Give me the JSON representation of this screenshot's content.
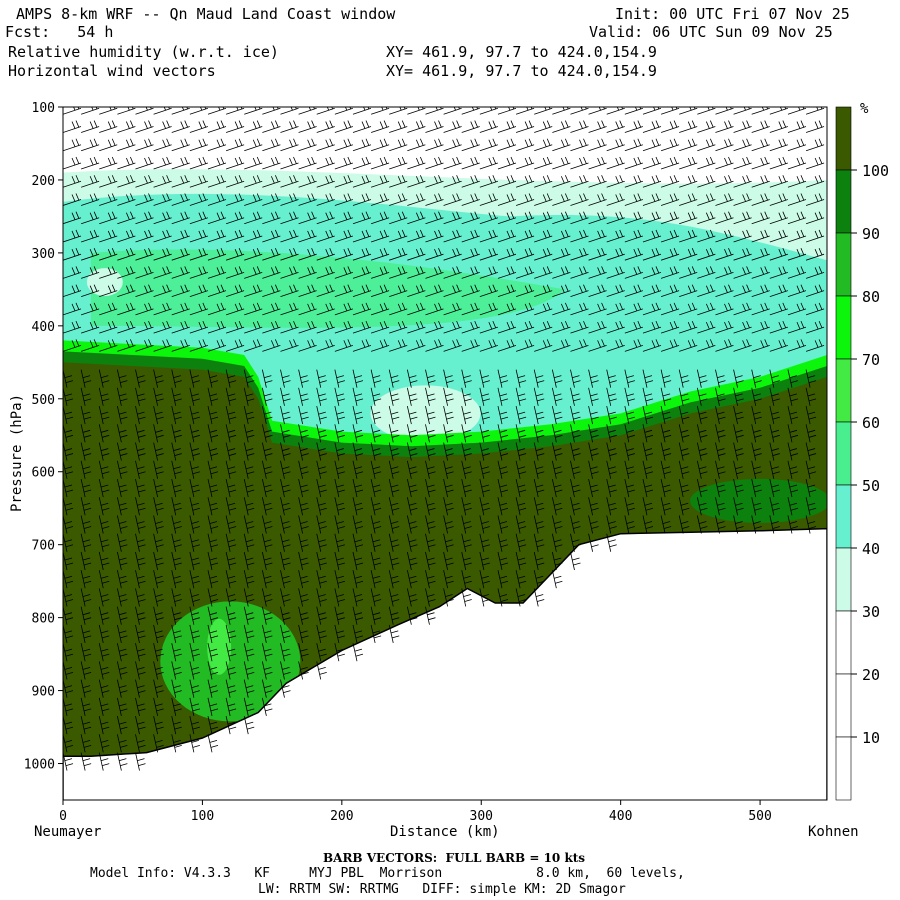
{
  "header": {
    "title": "AMPS 8-km WRF -- Qn Maud Land Coast window",
    "fcst": "Fcst:   54 h",
    "field1": "Relative humidity (w.r.t. ice)",
    "field2": "Horizontal wind vectors",
    "xy1": "XY= 461.9, 97.7 to 424.0,154.9",
    "xy2": "XY= 461.9, 97.7 to 424.0,154.9",
    "init": "Init: 00 UTC Fri 07 Nov 25",
    "valid": "Valid: 06 UTC Sun 09 Nov 25"
  },
  "axes": {
    "ylabel": "Pressure (hPa)",
    "xlabel": "Distance (km)",
    "left_endpoint": "Neumayer",
    "right_endpoint": "Kohnen",
    "colorbar_unit": "%"
  },
  "footer": {
    "barb_note": "BARB VECTORS:  FULL BARB = 10 kts",
    "model_line1": "Model Info: V4.3.3   KF     MYJ PBL  Morrison            8.0 km,  60 levels,",
    "model_line2": "LW: RRTM SW: RRTMG   DIFF: simple KM: 2D Smagor"
  },
  "colors": {
    "c10_20": "#ffffff",
    "c20_30": "#ffffff",
    "c30_40": "#ccfbe7",
    "c40_50": "#66f0cf",
    "c50_60": "#49ef8f",
    "c60_70": "#43ea43",
    "c70_80": "#0bf60b",
    "c80_90": "#23bb23",
    "c90_100": "#0d810d",
    "c100": "#3b5a00"
  },
  "chart_data": {
    "type": "heatmap",
    "title": "Relative humidity (w.r.t. ice)",
    "xlabel": "Distance (km)",
    "ylabel": "Pressure (hPa)",
    "xlim": [
      0,
      548
    ],
    "ylim": [
      1050,
      100
    ],
    "y_log": false,
    "x_ticks": [
      0,
      100,
      200,
      300,
      400,
      500
    ],
    "y_ticks": [
      100,
      200,
      300,
      400,
      500,
      600,
      700,
      800,
      900,
      1000
    ],
    "colorbar_levels": [
      10,
      20,
      30,
      40,
      50,
      60,
      70,
      80,
      90,
      100
    ],
    "colorbar_labels": [
      "10",
      "20",
      "30",
      "40",
      "50",
      "60",
      "70",
      "80",
      "90",
      "100"
    ],
    "terrain_surface": {
      "x_km": [
        0,
        20,
        60,
        100,
        140,
        160,
        200,
        240,
        270,
        290,
        310,
        330,
        350,
        370,
        400,
        450,
        500,
        548
      ],
      "p_hPa": [
        990,
        990,
        985,
        965,
        930,
        890,
        845,
        810,
        785,
        760,
        780,
        780,
        740,
        700,
        685,
        683,
        681,
        678
      ]
    },
    "moist_layer_top": {
      "x_km": [
        0,
        50,
        100,
        130,
        140,
        150,
        200,
        250,
        300,
        350,
        400,
        450,
        500,
        548
      ],
      "p_hPa": [
        450,
        455,
        460,
        470,
        500,
        560,
        575,
        580,
        575,
        565,
        550,
        520,
        500,
        470
      ]
    }
  }
}
